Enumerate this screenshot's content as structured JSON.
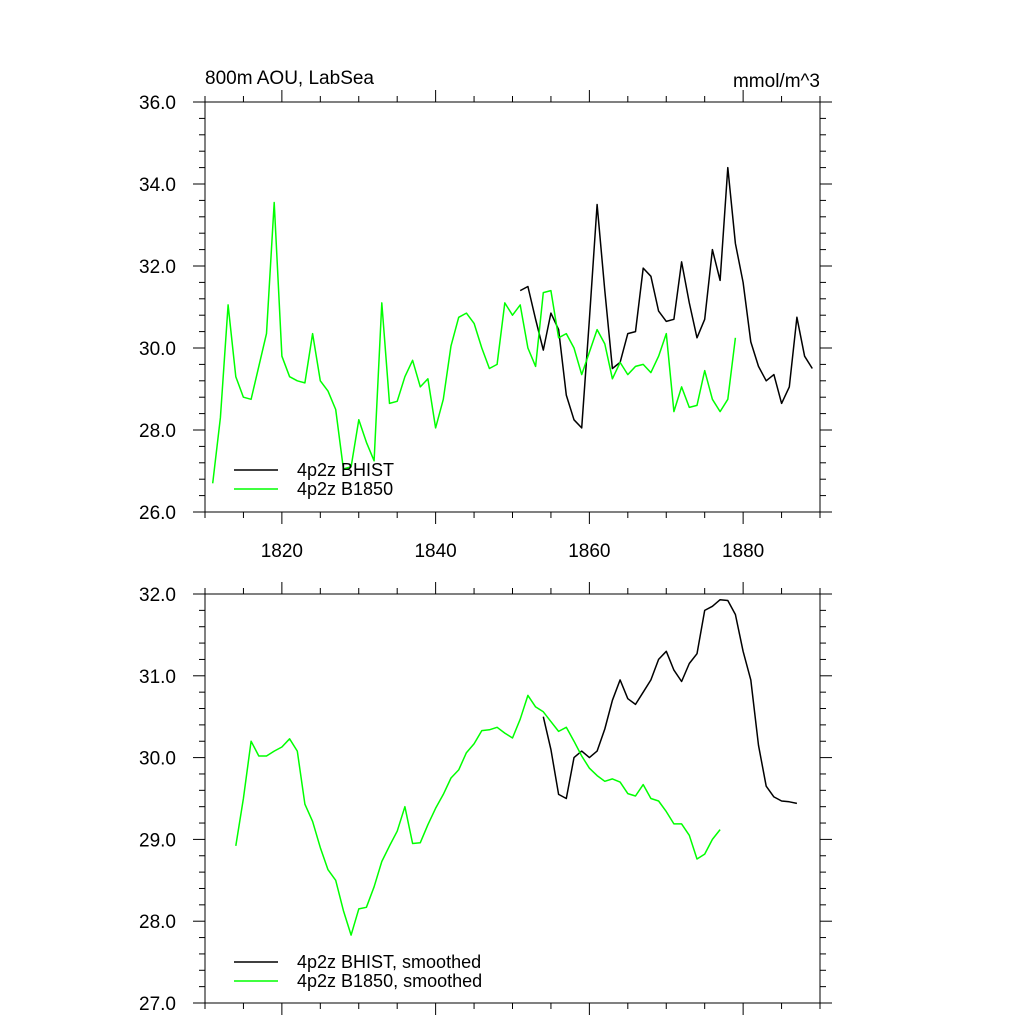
{
  "chart_data": [
    {
      "type": "line",
      "title": "800m AOU, LabSea",
      "units": "mmol/m^3",
      "xlim": [
        1810,
        1890
      ],
      "ylim": [
        26.0,
        36.0
      ],
      "x_ticks": [
        1820,
        1840,
        1860,
        1880
      ],
      "x_tick_labels": [
        "1820",
        "1840",
        "1860",
        "1880"
      ],
      "y_ticks": [
        26.0,
        28.0,
        30.0,
        32.0,
        34.0,
        36.0
      ],
      "y_tick_labels": [
        "26.0",
        "28.0",
        "30.0",
        "32.0",
        "34.0",
        "36.0"
      ],
      "legend_position": "bottom-left",
      "series": [
        {
          "name": "4p2z BHIST",
          "color": "#000000",
          "x": [
            1851,
            1852,
            1853,
            1854,
            1855,
            1856,
            1857,
            1858,
            1859,
            1860,
            1861,
            1862,
            1863,
            1864,
            1865,
            1866,
            1867,
            1868,
            1869,
            1870,
            1871,
            1872,
            1873,
            1874,
            1875,
            1876,
            1877,
            1878,
            1879,
            1880,
            1881,
            1882,
            1883,
            1884,
            1885,
            1886,
            1887,
            1888,
            1889
          ],
          "y": [
            31.4,
            31.5,
            30.7,
            29.95,
            30.85,
            30.45,
            28.85,
            28.25,
            28.05,
            30.7,
            33.5,
            31.4,
            29.5,
            29.65,
            30.35,
            30.4,
            31.95,
            31.75,
            30.9,
            30.65,
            30.7,
            32.1,
            31.1,
            30.25,
            30.7,
            32.4,
            31.65,
            34.4,
            32.55,
            31.6,
            30.15,
            29.55,
            29.2,
            29.35,
            28.65,
            29.05,
            30.75,
            29.8,
            29.5
          ]
        },
        {
          "name": "4p2z B1850",
          "color": "#00ff00",
          "x": [
            1811,
            1812,
            1813,
            1814,
            1815,
            1816,
            1817,
            1818,
            1819,
            1820,
            1821,
            1822,
            1823,
            1824,
            1825,
            1826,
            1827,
            1828,
            1829,
            1830,
            1831,
            1832,
            1833,
            1834,
            1835,
            1836,
            1837,
            1838,
            1839,
            1840,
            1841,
            1842,
            1843,
            1844,
            1845,
            1846,
            1847,
            1848,
            1849,
            1850,
            1851,
            1852,
            1853,
            1854,
            1855,
            1856,
            1857,
            1858,
            1859,
            1860,
            1861,
            1862,
            1863,
            1864,
            1865,
            1866,
            1867,
            1868,
            1869,
            1870,
            1871,
            1872,
            1873,
            1874,
            1875,
            1876,
            1877,
            1878,
            1879
          ],
          "y": [
            26.7,
            28.3,
            31.05,
            29.3,
            28.8,
            28.75,
            29.55,
            30.35,
            33.55,
            29.8,
            29.3,
            29.2,
            29.15,
            30.35,
            29.2,
            28.95,
            28.5,
            27.05,
            27.1,
            28.25,
            27.7,
            27.25,
            31.1,
            28.65,
            28.7,
            29.3,
            29.7,
            29.05,
            29.25,
            28.05,
            28.75,
            30.05,
            30.75,
            30.85,
            30.6,
            30.0,
            29.5,
            29.6,
            31.1,
            30.8,
            31.05,
            30.0,
            29.55,
            31.35,
            31.4,
            30.25,
            30.35,
            30.0,
            29.35,
            29.9,
            30.45,
            30.1,
            29.25,
            29.65,
            29.35,
            29.55,
            29.6,
            29.4,
            29.8,
            30.35,
            28.45,
            29.05,
            28.55,
            28.6,
            29.45,
            28.75,
            28.45,
            28.75,
            30.25
          ]
        }
      ]
    },
    {
      "type": "line",
      "xlim": [
        1810,
        1890
      ],
      "ylim": [
        27.0,
        32.0
      ],
      "x_ticks": [
        1820,
        1840,
        1860,
        1880
      ],
      "y_ticks": [
        27.0,
        28.0,
        29.0,
        30.0,
        31.0,
        32.0
      ],
      "y_tick_labels": [
        "27.0",
        "28.0",
        "29.0",
        "30.0",
        "31.0",
        "32.0"
      ],
      "legend_position": "bottom-left",
      "series": [
        {
          "name": "4p2z BHIST, smoothed",
          "color": "#000000",
          "x": [
            1854,
            1855,
            1856,
            1857,
            1858,
            1859,
            1860,
            1861,
            1862,
            1863,
            1864,
            1865,
            1866,
            1867,
            1868,
            1869,
            1870,
            1871,
            1872,
            1873,
            1874,
            1875,
            1876,
            1877,
            1878,
            1879,
            1880,
            1881,
            1882,
            1883,
            1884,
            1885,
            1886,
            1887
          ],
          "y": [
            30.5,
            30.1,
            29.55,
            29.5,
            30.0,
            30.08,
            30.0,
            30.08,
            30.35,
            30.7,
            30.95,
            30.72,
            30.65,
            30.8,
            30.95,
            31.2,
            31.3,
            31.07,
            30.93,
            31.15,
            31.27,
            31.8,
            31.85,
            31.93,
            31.92,
            31.75,
            31.3,
            30.95,
            30.15,
            29.65,
            29.52,
            29.47,
            29.46,
            29.44
          ]
        },
        {
          "name": "4p2z B1850, smoothed",
          "color": "#00ff00",
          "x": [
            1814,
            1815,
            1816,
            1817,
            1818,
            1819,
            1820,
            1821,
            1822,
            1823,
            1824,
            1825,
            1826,
            1827,
            1828,
            1829,
            1830,
            1831,
            1832,
            1833,
            1834,
            1835,
            1836,
            1837,
            1838,
            1839,
            1840,
            1841,
            1842,
            1843,
            1844,
            1845,
            1846,
            1847,
            1848,
            1849,
            1850,
            1851,
            1852,
            1853,
            1854,
            1855,
            1856,
            1857,
            1858,
            1859,
            1860,
            1861,
            1862,
            1863,
            1864,
            1865,
            1866,
            1867,
            1868,
            1869,
            1870,
            1871,
            1872,
            1873,
            1874,
            1875,
            1876,
            1877
          ],
          "y": [
            28.92,
            29.5,
            30.2,
            30.02,
            30.02,
            30.08,
            30.13,
            30.23,
            30.08,
            29.43,
            29.22,
            28.9,
            28.63,
            28.5,
            28.13,
            27.83,
            28.15,
            28.17,
            28.42,
            28.73,
            28.92,
            29.1,
            29.4,
            28.95,
            28.96,
            29.18,
            29.38,
            29.55,
            29.75,
            29.85,
            30.06,
            30.17,
            30.33,
            30.34,
            30.37,
            30.3,
            30.24,
            30.47,
            30.76,
            30.62,
            30.56,
            30.44,
            30.32,
            30.37,
            30.2,
            30.02,
            29.87,
            29.78,
            29.71,
            29.74,
            29.7,
            29.56,
            29.53,
            29.67,
            29.5,
            29.47,
            29.34,
            29.19,
            29.19,
            29.05,
            28.76,
            28.82,
            29.0,
            29.12
          ]
        }
      ]
    }
  ]
}
